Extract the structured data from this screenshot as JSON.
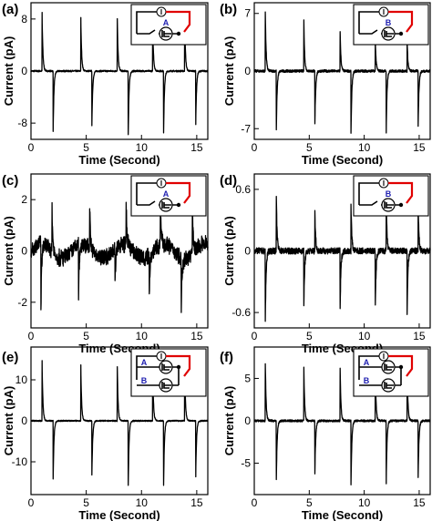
{
  "figure": {
    "panels": [
      {
        "id": "a",
        "label": "(a)",
        "xlabel": "Time (Second)",
        "ylabel": "Current (pA)",
        "inset_labels": [
          "A"
        ],
        "inset_meter": "I"
      },
      {
        "id": "b",
        "label": "(b)",
        "xlabel": "Time (Second)",
        "ylabel": "Current (pA)",
        "inset_labels": [
          "B"
        ],
        "inset_meter": "I"
      },
      {
        "id": "c",
        "label": "(c)",
        "xlabel": "Time (Second)",
        "ylabel": "Current (pA)",
        "inset_labels": [
          "A"
        ],
        "inset_meter": "I"
      },
      {
        "id": "d",
        "label": "(d)",
        "xlabel": "Time (Second)",
        "ylabel": "Current (pA)",
        "inset_labels": [
          "B"
        ],
        "inset_meter": "I"
      },
      {
        "id": "e",
        "label": "(e)",
        "xlabel": "Time (Second)",
        "ylabel": "Current (pA)",
        "inset_labels": [
          "A",
          "B"
        ],
        "inset_meter": "I"
      },
      {
        "id": "f",
        "label": "(f)",
        "xlabel": "Time (Second)",
        "ylabel": "Current (pA)",
        "inset_labels": [
          "A",
          "B"
        ],
        "inset_meter": "I"
      }
    ]
  },
  "colors": {
    "trace": "#000000",
    "wire_red": "#e00000",
    "inset_label": "#1f1fb0"
  },
  "chart_data": [
    {
      "panel": "a",
      "type": "line",
      "xlim": [
        0,
        16
      ],
      "ylim": [
        -10.5,
        10.5
      ],
      "xticks": [
        0,
        5,
        10,
        15
      ],
      "yticks": [
        -8,
        0,
        8
      ],
      "spike_times": [
        1.0,
        2.0,
        4.5,
        5.5,
        7.8,
        8.8,
        11.0,
        12.0,
        13.9,
        14.9
      ],
      "spike_heights": [
        9.5,
        -10.2,
        9.4,
        -10.0,
        9.3,
        -9.8,
        9.2,
        -9.6,
        9.1,
        -9.4
      ],
      "noise": 0.12
    },
    {
      "panel": "b",
      "type": "line",
      "xlim": [
        0,
        16
      ],
      "ylim": [
        -8.3,
        8.3
      ],
      "xticks": [
        0,
        5,
        10,
        15
      ],
      "yticks": [
        -7,
        0,
        7
      ],
      "spike_times": [
        1.0,
        2.0,
        4.5,
        5.5,
        7.8,
        8.8,
        11.0,
        12.0,
        13.9,
        14.9
      ],
      "spike_heights": [
        7.6,
        -7.9,
        7.0,
        -7.8,
        5.6,
        -7.7,
        4.4,
        -7.6,
        3.9,
        -7.5
      ],
      "noise": 0.15
    },
    {
      "panel": "c",
      "type": "line",
      "xlim": [
        0,
        16
      ],
      "ylim": [
        -3.0,
        3.0
      ],
      "xticks": [
        0,
        5,
        10,
        15
      ],
      "yticks": [
        -2,
        0,
        2
      ],
      "spike_times": [
        0.9,
        1.9,
        4.3,
        5.3,
        7.6,
        8.6,
        10.7,
        11.7,
        13.6,
        14.6
      ],
      "spike_heights": [
        -2.5,
        1.9,
        -2.1,
        2.0,
        -1.7,
        1.9,
        -1.5,
        1.8,
        -2.0,
        2.0
      ],
      "noise": 0.28
    },
    {
      "panel": "d",
      "type": "line",
      "xlim": [
        0,
        16
      ],
      "ylim": [
        -0.75,
        0.75
      ],
      "xticks": [
        0,
        5,
        10,
        15
      ],
      "yticks": [
        -0.6,
        0.0,
        0.6
      ],
      "spike_times": [
        1.0,
        2.0,
        4.5,
        5.5,
        7.8,
        8.8,
        11.0,
        12.0,
        13.9,
        14.9
      ],
      "spike_heights": [
        -0.7,
        0.56,
        -0.62,
        0.46,
        -0.66,
        0.45,
        -0.65,
        0.49,
        -0.66,
        0.5
      ],
      "noise": 0.03
    },
    {
      "panel": "e",
      "type": "line",
      "xlim": [
        0,
        16
      ],
      "ylim": [
        -18,
        18
      ],
      "xticks": [
        0,
        5,
        10,
        15
      ],
      "yticks": [
        -10,
        0,
        10
      ],
      "spike_times": [
        1.0,
        2.0,
        4.5,
        5.5,
        7.8,
        8.8,
        11.0,
        12.0,
        13.9,
        14.9
      ],
      "spike_heights": [
        15.5,
        -15.8,
        15.5,
        -15.8,
        15.5,
        -15.8,
        15.5,
        -15.8,
        15.3,
        -15.6
      ],
      "noise": 0.15
    },
    {
      "panel": "f",
      "type": "line",
      "xlim": [
        0,
        16
      ],
      "ylim": [
        -8.7,
        8.7
      ],
      "xticks": [
        0,
        5,
        10,
        15
      ],
      "yticks": [
        -5,
        0,
        5
      ],
      "spike_times": [
        1.0,
        2.0,
        4.5,
        5.5,
        7.8,
        8.8,
        11.0,
        12.0,
        13.9,
        14.9
      ],
      "spike_heights": [
        7.2,
        -7.6,
        7.1,
        -7.5,
        7.2,
        -7.6,
        7.1,
        -7.5,
        7.0,
        -7.6
      ],
      "noise": 0.12
    }
  ]
}
